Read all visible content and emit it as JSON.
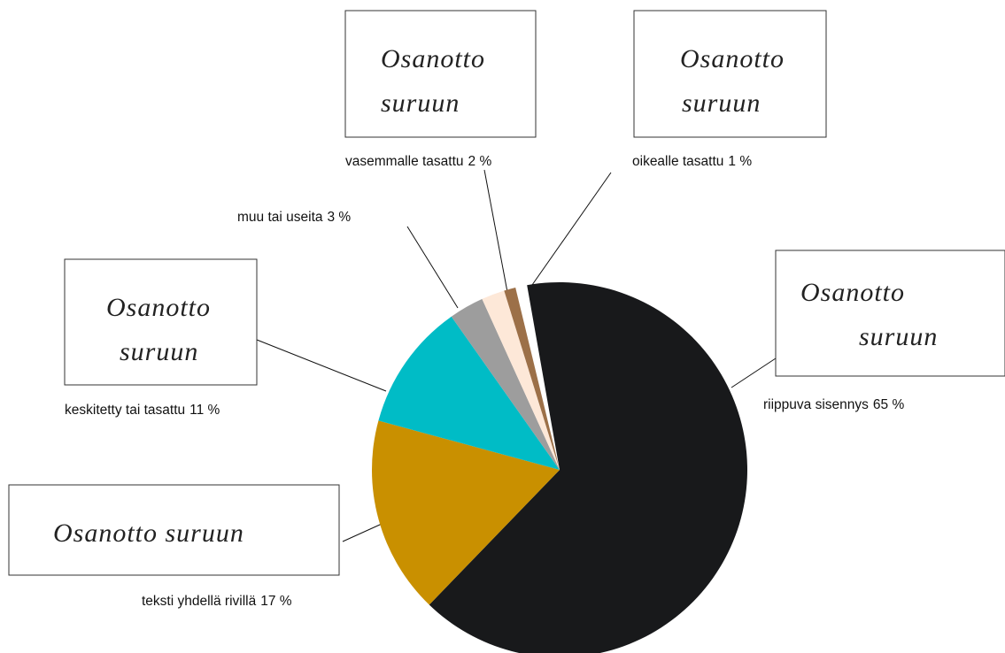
{
  "chart_data": {
    "type": "pie",
    "categories": [
      "riippuva sisennys",
      "teksti yhdellä rivillä",
      "keskitetty tai tasattu",
      "muu tai useita",
      "vasemmalle tasattu",
      "oikealle tasattu"
    ],
    "values": [
      65,
      17,
      11,
      3,
      2,
      1
    ],
    "value_labels": [
      "65 %",
      "17 %",
      "11 %",
      "3 %",
      "2 %",
      "1 %"
    ],
    "colors": [
      "#18191b",
      "#c99000",
      "#00bcc6",
      "#9d9d9d",
      "#fde8d8",
      "#9c7048"
    ],
    "annotations": [
      [
        "Osanotto",
        "suruun"
      ],
      [
        "Osanotto suruun"
      ],
      [
        "Osanotto",
        "suruun"
      ],
      [
        "Osanotto",
        "suruun"
      ],
      [
        "Osanotto",
        "suruun"
      ]
    ]
  }
}
